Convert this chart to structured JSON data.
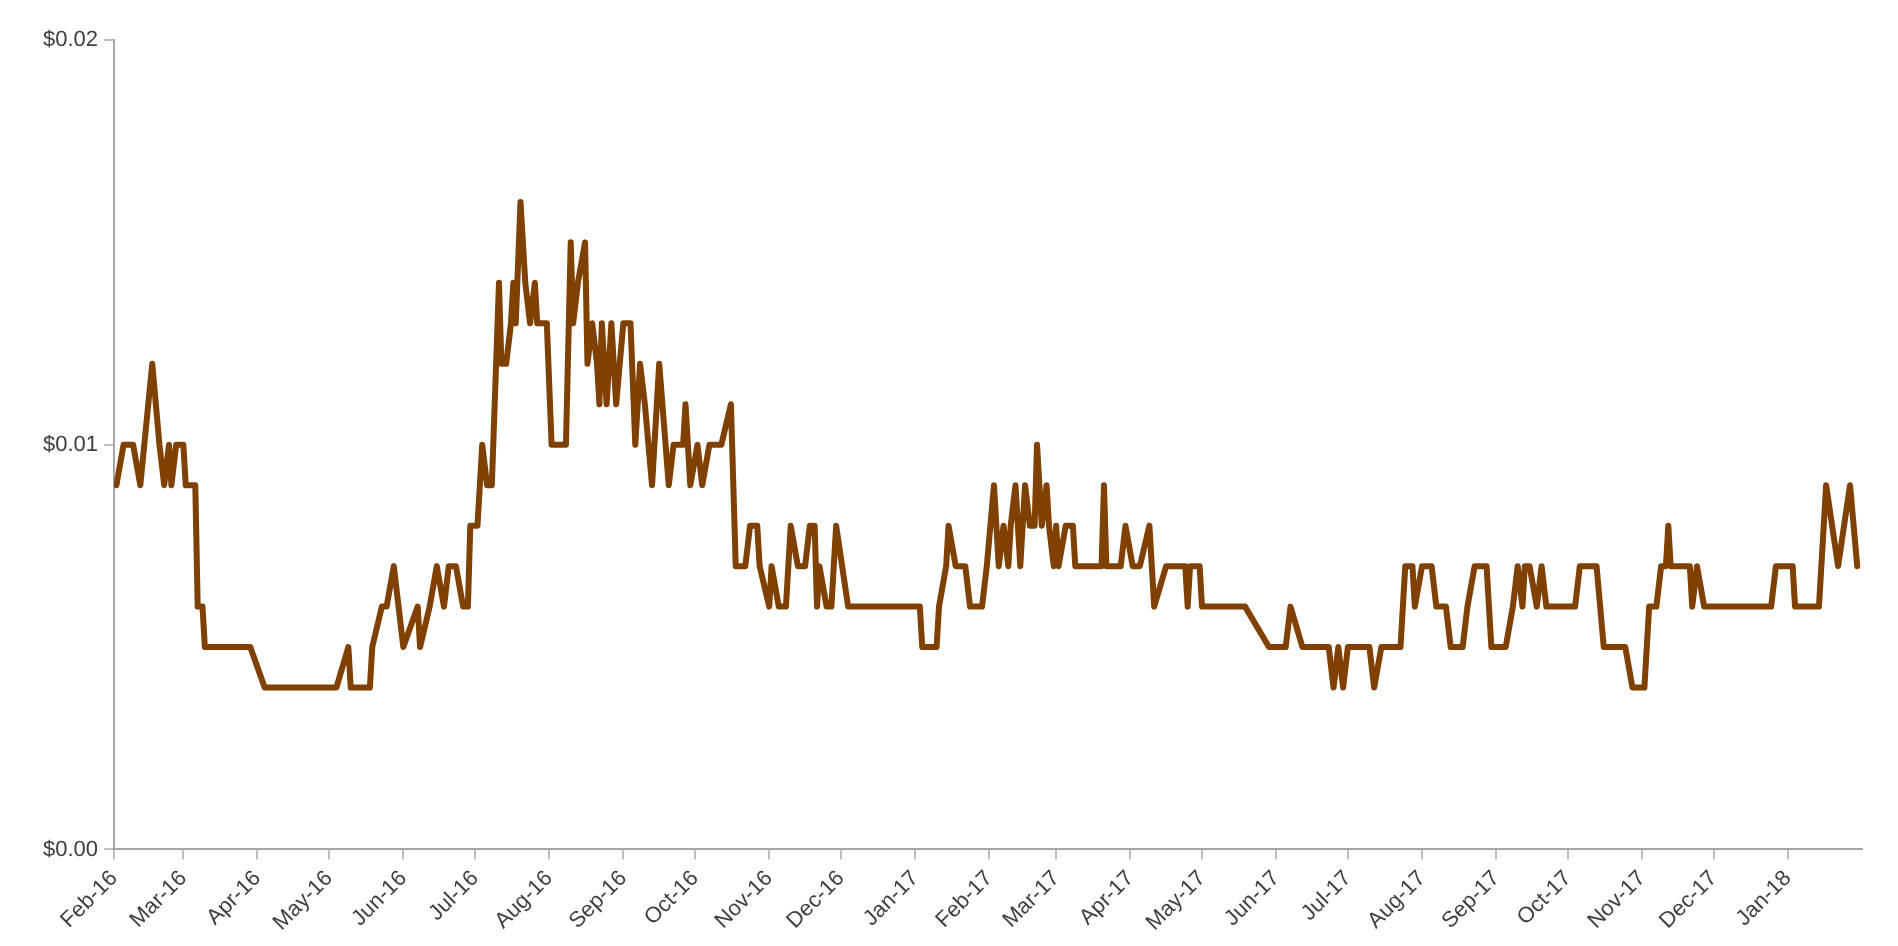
{
  "chart_data": {
    "type": "line",
    "x": [
      "2016-02-02",
      "2016-02-05",
      "2016-02-09",
      "2016-02-12",
      "2016-02-17",
      "2016-02-20",
      "2016-02-22",
      "2016-02-24",
      "2016-02-25",
      "2016-02-27",
      "2016-03-01",
      "2016-03-02",
      "2016-03-06",
      "2016-03-07",
      "2016-03-09",
      "2016-03-10",
      "2016-03-29",
      "2016-04-04",
      "2016-05-04",
      "2016-05-09",
      "2016-05-10",
      "2016-05-18",
      "2016-05-19",
      "2016-05-23",
      "2016-05-25",
      "2016-05-28",
      "2016-06-01",
      "2016-06-07",
      "2016-06-08",
      "2016-06-12",
      "2016-06-15",
      "2016-06-18",
      "2016-06-20",
      "2016-06-23",
      "2016-06-26",
      "2016-06-28",
      "2016-06-29",
      "2016-07-02",
      "2016-07-04",
      "2016-07-06",
      "2016-07-08",
      "2016-07-11",
      "2016-07-12",
      "2016-07-14",
      "2016-07-16",
      "2016-07-17",
      "2016-07-18",
      "2016-07-20",
      "2016-07-22",
      "2016-07-24",
      "2016-07-26",
      "2016-07-27",
      "2016-07-31",
      "2016-08-02",
      "2016-08-08",
      "2016-08-10",
      "2016-08-11",
      "2016-08-13",
      "2016-08-16",
      "2016-08-17",
      "2016-08-19",
      "2016-08-21",
      "2016-08-22",
      "2016-08-23",
      "2016-08-25",
      "2016-08-27",
      "2016-08-29",
      "2016-09-01",
      "2016-09-04",
      "2016-09-06",
      "2016-09-08",
      "2016-09-10",
      "2016-09-13",
      "2016-09-16",
      "2016-09-20",
      "2016-09-22",
      "2016-09-26",
      "2016-09-27",
      "2016-09-29",
      "2016-10-02",
      "2016-10-04",
      "2016-10-07",
      "2016-10-12",
      "2016-10-16",
      "2016-10-18",
      "2016-10-22",
      "2016-10-24",
      "2016-10-27",
      "2016-10-28",
      "2016-11-01",
      "2016-11-02",
      "2016-11-05",
      "2016-11-08",
      "2016-11-10",
      "2016-11-13",
      "2016-11-16",
      "2016-11-18",
      "2016-11-20",
      "2016-11-21",
      "2016-11-22",
      "2016-11-25",
      "2016-11-27",
      "2016-11-29",
      "2016-12-04",
      "2017-01-03",
      "2017-01-04",
      "2017-01-10",
      "2017-01-11",
      "2017-01-14",
      "2017-01-15",
      "2017-01-18",
      "2017-01-22",
      "2017-01-24",
      "2017-01-29",
      "2017-01-31",
      "2017-02-03",
      "2017-02-05",
      "2017-02-07",
      "2017-02-09",
      "2017-02-10",
      "2017-02-12",
      "2017-02-14",
      "2017-02-16",
      "2017-02-18",
      "2017-02-20",
      "2017-02-21",
      "2017-02-23",
      "2017-02-25",
      "2017-02-26",
      "2017-02-28",
      "2017-03-01",
      "2017-03-02",
      "2017-03-05",
      "2017-03-08",
      "2017-03-09",
      "2017-03-20",
      "2017-03-21",
      "2017-03-22",
      "2017-03-28",
      "2017-03-30",
      "2017-04-02",
      "2017-04-05",
      "2017-04-09",
      "2017-04-11",
      "2017-04-16",
      "2017-04-24",
      "2017-04-25",
      "2017-04-26",
      "2017-04-30",
      "2017-05-01",
      "2017-05-19",
      "2017-05-29",
      "2017-06-05",
      "2017-06-07",
      "2017-06-12",
      "2017-06-23",
      "2017-06-25",
      "2017-06-27",
      "2017-06-29",
      "2017-07-01",
      "2017-07-10",
      "2017-07-12",
      "2017-07-15",
      "2017-07-23",
      "2017-07-25",
      "2017-07-28",
      "2017-07-29",
      "2017-08-01",
      "2017-08-05",
      "2017-08-07",
      "2017-08-11",
      "2017-08-13",
      "2017-08-18",
      "2017-08-20",
      "2017-08-23",
      "2017-08-28",
      "2017-08-30",
      "2017-09-05",
      "2017-09-08",
      "2017-09-10",
      "2017-09-12",
      "2017-09-13",
      "2017-09-15",
      "2017-09-18",
      "2017-09-20",
      "2017-09-22",
      "2017-10-04",
      "2017-10-06",
      "2017-10-13",
      "2017-10-16",
      "2017-10-25",
      "2017-10-28",
      "2017-11-02",
      "2017-11-04",
      "2017-11-07",
      "2017-11-09",
      "2017-11-11",
      "2017-11-12",
      "2017-11-13",
      "2017-11-21",
      "2017-11-22",
      "2017-11-24",
      "2017-11-27",
      "2017-12-25",
      "2017-12-27",
      "2018-01-03",
      "2018-01-04",
      "2018-01-14",
      "2018-01-17",
      "2018-01-22",
      "2018-01-27",
      "2018-01-30"
    ],
    "series": [
      {
        "color": "#7f4000",
        "values": [
          0.009,
          0.01,
          0.01,
          0.009,
          0.012,
          0.01,
          0.009,
          0.01,
          0.009,
          0.01,
          0.01,
          0.009,
          0.009,
          0.006,
          0.006,
          0.005,
          0.005,
          0.004,
          0.004,
          0.005,
          0.004,
          0.004,
          0.005,
          0.006,
          0.006,
          0.007,
          0.005,
          0.006,
          0.005,
          0.006,
          0.007,
          0.006,
          0.007,
          0.007,
          0.006,
          0.006,
          0.008,
          0.008,
          0.01,
          0.009,
          0.009,
          0.014,
          0.012,
          0.012,
          0.013,
          0.014,
          0.013,
          0.016,
          0.014,
          0.013,
          0.014,
          0.013,
          0.013,
          0.01,
          0.01,
          0.015,
          0.013,
          0.014,
          0.015,
          0.012,
          0.013,
          0.012,
          0.011,
          0.013,
          0.011,
          0.013,
          0.011,
          0.013,
          0.013,
          0.01,
          0.012,
          0.011,
          0.009,
          0.012,
          0.009,
          0.01,
          0.01,
          0.011,
          0.009,
          0.01,
          0.009,
          0.01,
          0.01,
          0.011,
          0.007,
          0.007,
          0.008,
          0.008,
          0.007,
          0.006,
          0.007,
          0.006,
          0.006,
          0.008,
          0.007,
          0.007,
          0.008,
          0.008,
          0.006,
          0.007,
          0.006,
          0.006,
          0.008,
          0.006,
          0.006,
          0.005,
          0.005,
          0.006,
          0.007,
          0.008,
          0.007,
          0.007,
          0.006,
          0.006,
          0.007,
          0.009,
          0.007,
          0.008,
          0.007,
          0.008,
          0.009,
          0.007,
          0.009,
          0.008,
          0.008,
          0.01,
          0.008,
          0.009,
          0.008,
          0.007,
          0.008,
          0.007,
          0.008,
          0.008,
          0.007,
          0.007,
          0.009,
          0.007,
          0.007,
          0.008,
          0.007,
          0.007,
          0.008,
          0.006,
          0.007,
          0.007,
          0.006,
          0.007,
          0.007,
          0.006,
          0.006,
          0.005,
          0.005,
          0.006,
          0.005,
          0.005,
          0.004,
          0.005,
          0.004,
          0.005,
          0.005,
          0.004,
          0.005,
          0.005,
          0.007,
          0.007,
          0.006,
          0.007,
          0.007,
          0.006,
          0.006,
          0.005,
          0.005,
          0.006,
          0.007,
          0.007,
          0.005,
          0.005,
          0.006,
          0.007,
          0.006,
          0.007,
          0.007,
          0.006,
          0.007,
          0.006,
          0.006,
          0.007,
          0.007,
          0.005,
          0.005,
          0.004,
          0.004,
          0.006,
          0.006,
          0.007,
          0.007,
          0.008,
          0.007,
          0.007,
          0.006,
          0.007,
          0.006,
          0.006,
          0.007,
          0.007,
          0.006,
          0.006,
          0.009,
          0.007,
          0.009,
          0.007
        ]
      }
    ],
    "xlim": [
      "2016-02-01",
      "2018-02-01"
    ],
    "xticks": [
      {
        "value": "2016-02-01",
        "label": "Feb-16"
      },
      {
        "value": "2016-03-01",
        "label": "Mar-16"
      },
      {
        "value": "2016-04-01",
        "label": "Apr-16"
      },
      {
        "value": "2016-05-01",
        "label": "May-16"
      },
      {
        "value": "2016-06-01",
        "label": "Jun-16"
      },
      {
        "value": "2016-07-01",
        "label": "Jul-16"
      },
      {
        "value": "2016-08-01",
        "label": "Aug-16"
      },
      {
        "value": "2016-09-01",
        "label": "Sep-16"
      },
      {
        "value": "2016-10-01",
        "label": "Oct-16"
      },
      {
        "value": "2016-11-01",
        "label": "Nov-16"
      },
      {
        "value": "2016-12-01",
        "label": "Dec-16"
      },
      {
        "value": "2017-01-01",
        "label": "Jan-17"
      },
      {
        "value": "2017-02-01",
        "label": "Feb-17"
      },
      {
        "value": "2017-03-01",
        "label": "Mar-17"
      },
      {
        "value": "2017-04-01",
        "label": "Apr-17"
      },
      {
        "value": "2017-05-01",
        "label": "May-17"
      },
      {
        "value": "2017-06-01",
        "label": "Jun-17"
      },
      {
        "value": "2017-07-01",
        "label": "Jul-17"
      },
      {
        "value": "2017-08-01",
        "label": "Aug-17"
      },
      {
        "value": "2017-09-01",
        "label": "Sep-17"
      },
      {
        "value": "2017-10-01",
        "label": "Oct-17"
      },
      {
        "value": "2017-11-01",
        "label": "Nov-17"
      },
      {
        "value": "2017-12-01",
        "label": "Dec-17"
      },
      {
        "value": "2018-01-01",
        "label": "Jan-18"
      }
    ],
    "ylim": [
      0,
      0.02
    ],
    "yticks": [
      {
        "value": 0,
        "label": "$0.00"
      },
      {
        "value": 0.01,
        "label": "$0.01"
      },
      {
        "value": 0.02,
        "label": "$0.02"
      }
    ],
    "grid": false,
    "legend": false,
    "marker": "none",
    "line_style": "solid"
  }
}
